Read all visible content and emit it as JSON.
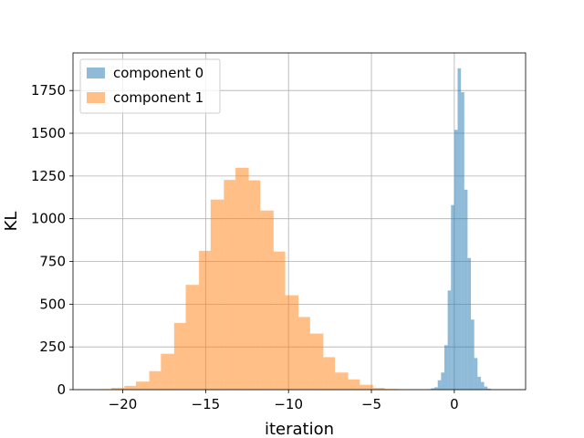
{
  "chart_data": {
    "type": "bar",
    "xlabel": "iteration",
    "ylabel": "KL",
    "xlim": [
      -23,
      4.3
    ],
    "ylim": [
      0,
      1970
    ],
    "xticks": [
      -20,
      -15,
      -10,
      -5,
      0
    ],
    "xtick_labels": [
      "−20",
      "−15",
      "−10",
      "−5",
      "0"
    ],
    "yticks": [
      0,
      250,
      500,
      750,
      1000,
      1250,
      1500,
      1750
    ],
    "ytick_labels": [
      "0",
      "250",
      "500",
      "750",
      "1000",
      "1250",
      "1500",
      "1750"
    ],
    "grid": true,
    "legend_position": "upper-left",
    "colors": {
      "component_0": "#1f77b4",
      "component_1": "#ff7f0e"
    },
    "series": [
      {
        "name": "component 1",
        "bins": [
          [
            -21.4,
            -20.7,
            3
          ],
          [
            -20.7,
            -19.9,
            10
          ],
          [
            -19.9,
            -19.2,
            22
          ],
          [
            -19.2,
            -18.4,
            47
          ],
          [
            -18.4,
            -17.7,
            108
          ],
          [
            -17.7,
            -16.9,
            210
          ],
          [
            -16.9,
            -16.2,
            390
          ],
          [
            -16.2,
            -15.4,
            613
          ],
          [
            -15.4,
            -14.7,
            812
          ],
          [
            -14.7,
            -13.9,
            1112
          ],
          [
            -13.9,
            -13.2,
            1227
          ],
          [
            -13.2,
            -12.4,
            1298
          ],
          [
            -12.4,
            -11.7,
            1225
          ],
          [
            -11.7,
            -10.9,
            1048
          ],
          [
            -10.9,
            -10.2,
            808
          ],
          [
            -10.2,
            -9.4,
            552
          ],
          [
            -9.4,
            -8.7,
            425
          ],
          [
            -8.7,
            -7.9,
            328
          ],
          [
            -7.9,
            -7.2,
            190
          ],
          [
            -7.2,
            -6.4,
            100
          ],
          [
            -6.4,
            -5.7,
            60
          ],
          [
            -5.7,
            -4.9,
            28
          ],
          [
            -4.9,
            -4.2,
            10
          ],
          [
            -4.2,
            -3.4,
            4
          ],
          [
            -3.4,
            -2.7,
            2
          ]
        ]
      },
      {
        "name": "component 0",
        "bins": [
          [
            -1.6,
            -1.4,
            3
          ],
          [
            -1.4,
            -1.2,
            8
          ],
          [
            -1.2,
            -1.0,
            14
          ],
          [
            -1.0,
            -0.8,
            55
          ],
          [
            -0.8,
            -0.6,
            100
          ],
          [
            -0.6,
            -0.4,
            260
          ],
          [
            -0.4,
            -0.2,
            580
          ],
          [
            -0.2,
            0.0,
            1080
          ],
          [
            0.0,
            0.2,
            1520
          ],
          [
            0.2,
            0.4,
            1880
          ],
          [
            0.4,
            0.6,
            1740
          ],
          [
            0.6,
            0.8,
            1170
          ],
          [
            0.8,
            1.0,
            770
          ],
          [
            1.0,
            1.2,
            410
          ],
          [
            1.2,
            1.4,
            185
          ],
          [
            1.4,
            1.6,
            75
          ],
          [
            1.6,
            1.8,
            45
          ],
          [
            1.8,
            2.0,
            18
          ],
          [
            2.0,
            2.2,
            6
          ]
        ]
      }
    ]
  }
}
